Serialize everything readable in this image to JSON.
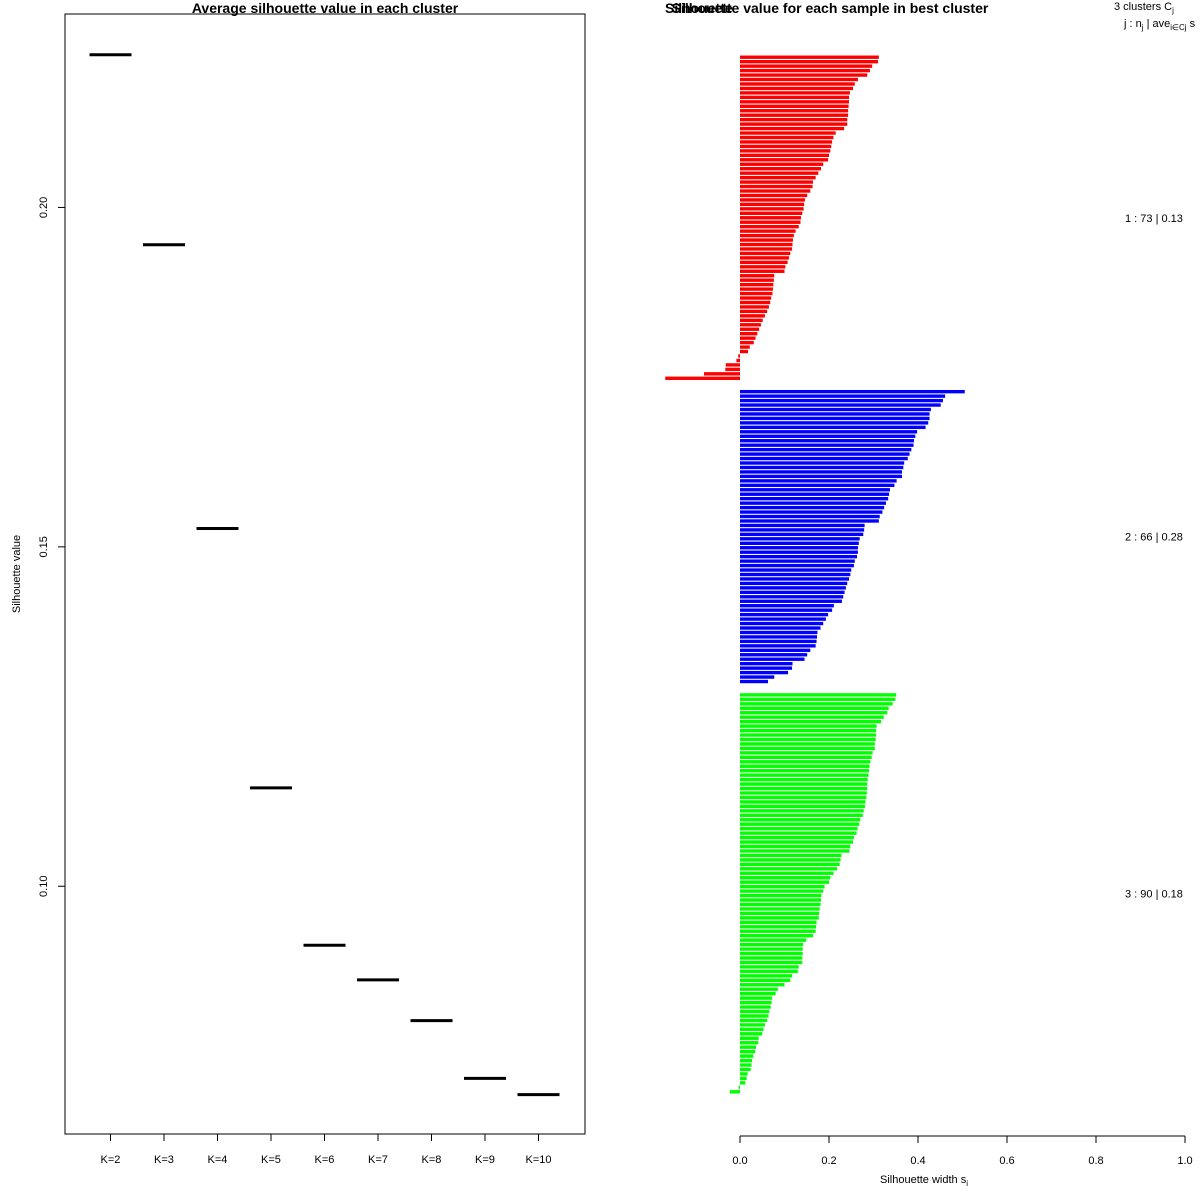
{
  "chart_data": [
    {
      "type": "scatter",
      "marker": "horizontal-segment",
      "title": "Average silhouette value in each cluster",
      "xlabel": "",
      "ylabel": "Silhouette value",
      "categories": [
        "K=2",
        "K=3",
        "K=4",
        "K=5",
        "K=6",
        "K=7",
        "K=8",
        "K=9",
        "K=10"
      ],
      "values": [
        0.2225,
        0.1945,
        0.1527,
        0.1145,
        0.0913,
        0.0862,
        0.0802,
        0.0717,
        0.0693
      ],
      "y_ticks": [
        0.1,
        0.15,
        0.2
      ],
      "y_tick_labels": [
        "0.10",
        "0.15",
        "0.20"
      ],
      "ylim": [
        0.0635,
        0.2285
      ]
    },
    {
      "type": "bar",
      "orientation": "horizontal",
      "title": "Silhouette value for each sample in best cluster",
      "title_overlap": "Silhouette",
      "xlabel": "Silhouette width s",
      "xlabel_sub": "i",
      "xlim": [
        0,
        1
      ],
      "x_ticks": [
        0.0,
        0.2,
        0.4,
        0.6,
        0.8,
        1.0
      ],
      "x_tick_labels": [
        "0.0",
        "0.2",
        "0.4",
        "0.6",
        "0.8",
        "1.0"
      ],
      "legend": {
        "header_main": "3  clusters  C",
        "header_sub": "j",
        "subheader_a": "j :  n",
        "subheader_sub_j": "j",
        "subheader_b": " | ave",
        "subheader_sub_i": "i∈Cj",
        "subheader_c": "  s"
      },
      "clusters": [
        {
          "id": 1,
          "n": 73,
          "avg": 0.13,
          "label": "1 :  73  |  0.13",
          "color": "#ff0000",
          "values": [
            0.312,
            0.31,
            0.297,
            0.292,
            0.286,
            0.265,
            0.258,
            0.254,
            0.247,
            0.245,
            0.245,
            0.244,
            0.243,
            0.243,
            0.241,
            0.241,
            0.234,
            0.215,
            0.21,
            0.207,
            0.205,
            0.203,
            0.2,
            0.198,
            0.187,
            0.182,
            0.176,
            0.17,
            0.164,
            0.163,
            0.158,
            0.151,
            0.146,
            0.144,
            0.143,
            0.14,
            0.137,
            0.136,
            0.132,
            0.125,
            0.121,
            0.119,
            0.118,
            0.117,
            0.113,
            0.11,
            0.107,
            0.102,
            0.1,
            0.077,
            0.076,
            0.075,
            0.074,
            0.073,
            0.07,
            0.068,
            0.065,
            0.061,
            0.056,
            0.051,
            0.047,
            0.043,
            0.039,
            0.035,
            0.031,
            0.022,
            0.018,
            -0.004,
            -0.008,
            -0.032,
            -0.033,
            -0.081,
            -0.168
          ]
        },
        {
          "id": 2,
          "n": 66,
          "avg": 0.28,
          "label": "2 :  66  |  0.28",
          "color": "#0000ff",
          "values": [
            0.505,
            0.461,
            0.456,
            0.451,
            0.429,
            0.426,
            0.426,
            0.423,
            0.417,
            0.398,
            0.394,
            0.391,
            0.39,
            0.385,
            0.381,
            0.377,
            0.369,
            0.367,
            0.364,
            0.364,
            0.352,
            0.347,
            0.337,
            0.335,
            0.333,
            0.328,
            0.324,
            0.32,
            0.314,
            0.312,
            0.28,
            0.279,
            0.277,
            0.269,
            0.267,
            0.265,
            0.265,
            0.263,
            0.258,
            0.256,
            0.25,
            0.248,
            0.245,
            0.241,
            0.238,
            0.235,
            0.232,
            0.229,
            0.211,
            0.207,
            0.198,
            0.193,
            0.187,
            0.181,
            0.174,
            0.173,
            0.172,
            0.17,
            0.158,
            0.151,
            0.145,
            0.118,
            0.117,
            0.108,
            0.077,
            0.063
          ]
        },
        {
          "id": 3,
          "n": 90,
          "avg": 0.18,
          "label": "3 :  90  |  0.18",
          "color": "#00ff00",
          "values": [
            0.351,
            0.349,
            0.343,
            0.334,
            0.331,
            0.323,
            0.317,
            0.307,
            0.306,
            0.306,
            0.305,
            0.303,
            0.303,
            0.298,
            0.296,
            0.293,
            0.291,
            0.29,
            0.289,
            0.287,
            0.286,
            0.286,
            0.285,
            0.284,
            0.282,
            0.281,
            0.278,
            0.276,
            0.27,
            0.268,
            0.264,
            0.262,
            0.256,
            0.254,
            0.248,
            0.246,
            0.228,
            0.226,
            0.224,
            0.218,
            0.21,
            0.203,
            0.2,
            0.19,
            0.187,
            0.183,
            0.182,
            0.181,
            0.179,
            0.178,
            0.177,
            0.172,
            0.171,
            0.17,
            0.164,
            0.149,
            0.142,
            0.141,
            0.141,
            0.14,
            0.14,
            0.132,
            0.13,
            0.117,
            0.113,
            0.1,
            0.085,
            0.08,
            0.072,
            0.071,
            0.069,
            0.066,
            0.064,
            0.061,
            0.056,
            0.053,
            0.05,
            0.042,
            0.041,
            0.036,
            0.034,
            0.03,
            0.027,
            0.026,
            0.024,
            0.017,
            0.015,
            0.012,
            -0.003,
            -0.023
          ]
        }
      ]
    }
  ]
}
